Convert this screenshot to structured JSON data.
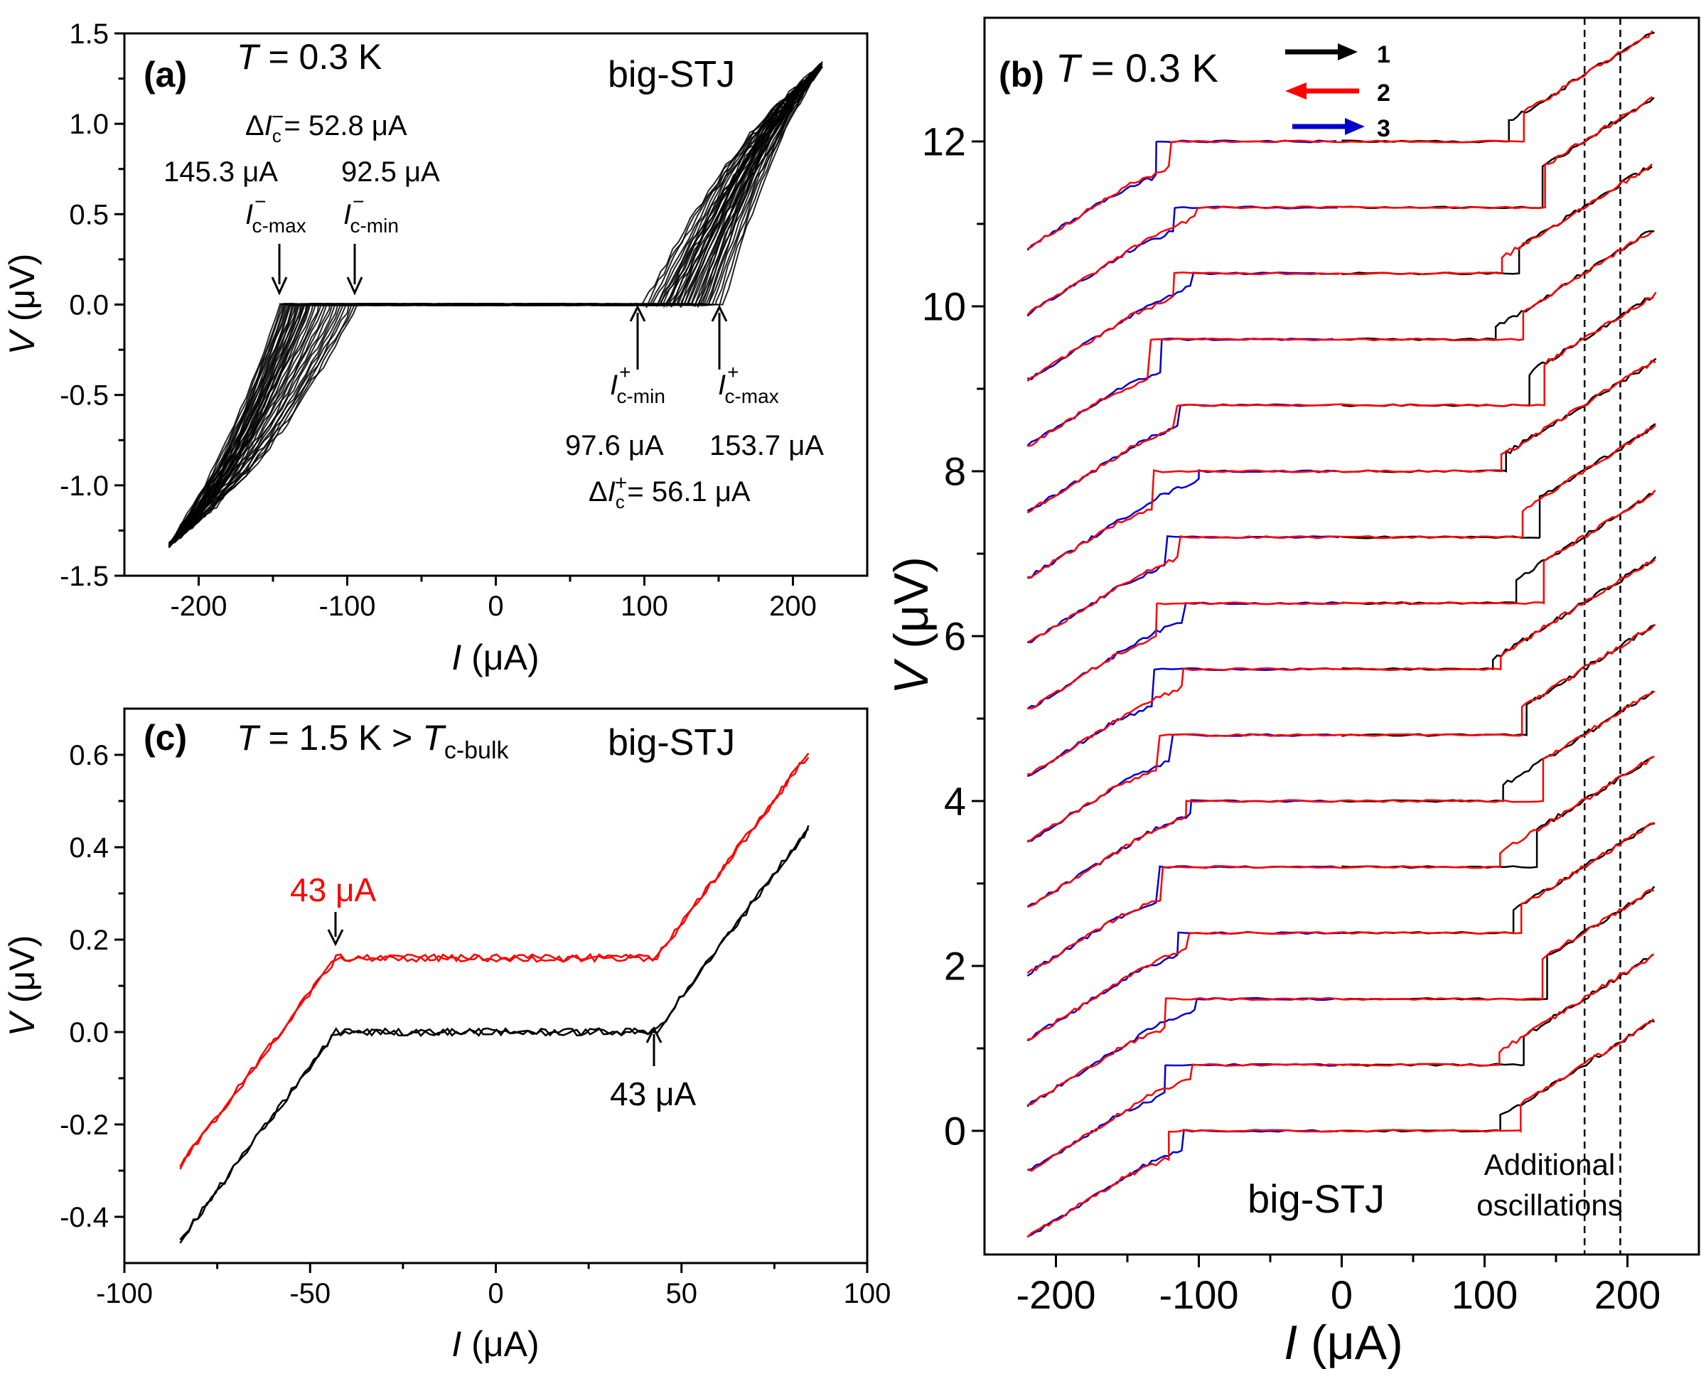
{
  "chart_data": [
    {
      "id": "a",
      "type": "line",
      "panel_label": "(a)",
      "title_T": "T",
      "title_rest": " = 0.3 K",
      "device": "big-STJ",
      "xlabel_sym": "I",
      "xlabel_unit": " (μA)",
      "ylabel_sym": "V",
      "ylabel_unit": " (μV)",
      "xlim": [
        -250,
        250
      ],
      "ylim": [
        -1.5,
        1.5
      ],
      "xticks": [
        -200,
        -100,
        0,
        100,
        200
      ],
      "xtick_labels": [
        "-200",
        "-100",
        "0",
        "100",
        "200"
      ],
      "yticks": [
        -1.5,
        -1.0,
        -0.5,
        0.0,
        0.5,
        1.0,
        1.5
      ],
      "ytick_labels": [
        "-1.5",
        "-1.0",
        "-0.5",
        "0.0",
        "0.5",
        "1.0",
        "1.5"
      ],
      "series_color": "#000000",
      "sweep_count": 40,
      "Ic_minus_max": -145.3,
      "Ic_minus_min": -92.5,
      "Ic_plus_min": 97.6,
      "Ic_plus_max": 153.7,
      "endpoints": [
        [
          -220,
          -1.33
        ],
        [
          220,
          1.33
        ]
      ],
      "annotations": {
        "delta_minus": "ΔIc−= 52.8 μA",
        "val_145": "145.3 μA",
        "val_925": "92.5 μA",
        "lbl_cmax_minus": "Ic-max−",
        "lbl_cmin_minus": "Ic-min−",
        "lbl_cmin_plus": "Ic-min+",
        "lbl_cmax_plus": "Ic-max+",
        "val_976": "97.6 μA",
        "val_1537": "153.7 μA",
        "delta_plus": "ΔIc+= 56.1 μA"
      }
    },
    {
      "id": "b",
      "type": "line",
      "panel_label": "(b)",
      "title_T": "T",
      "title_rest": " = 0.3 K",
      "device": "big-STJ",
      "xlabel_sym": "I",
      "xlabel_unit": " (μA)",
      "ylabel_sym": "V",
      "ylabel_unit": " (μV)",
      "xlim": [
        -250,
        250
      ],
      "ylim": [
        -1.5,
        13.5
      ],
      "xticks": [
        -200,
        -100,
        0,
        100,
        200
      ],
      "xtick_labels": [
        "-200",
        "-100",
        "0",
        "100",
        "200"
      ],
      "yticks": [
        0,
        2,
        4,
        6,
        8,
        10,
        12
      ],
      "ytick_labels": [
        "0",
        "2",
        "4",
        "6",
        "8",
        "10",
        "12"
      ],
      "curve_offsets": [
        0,
        0.8,
        1.6,
        2.4,
        3.2,
        4.0,
        4.8,
        5.6,
        6.4,
        7.2,
        8.0,
        8.8,
        9.6,
        10.4,
        11.2,
        12.0
      ],
      "slope_uV_per_uA": 0.0108,
      "legend": [
        {
          "label": "1",
          "color": "#000000",
          "direction": "right"
        },
        {
          "label": "2",
          "color": "#ff0000",
          "direction": "left"
        },
        {
          "label": "3",
          "color": "#0000cc",
          "direction": "right"
        }
      ],
      "vlines": [
        170,
        195
      ],
      "annotation_line1": "Additional",
      "annotation_line2": "oscillations"
    },
    {
      "id": "c",
      "type": "line",
      "panel_label": "(c)",
      "title_T": "T",
      "title_rest": " = 1.5 K > ",
      "title_T2": "T",
      "title_sub": "c-bulk",
      "device": "big-STJ",
      "xlabel_sym": "I",
      "xlabel_unit": " (μA)",
      "ylabel_sym": "V",
      "ylabel_unit": " (μV)",
      "xlim": [
        -100,
        100
      ],
      "ylim": [
        -0.5,
        0.7
      ],
      "xticks": [
        -100,
        -50,
        0,
        50,
        100
      ],
      "xtick_labels": [
        "-100",
        "-50",
        "0",
        "50",
        "100"
      ],
      "yticks": [
        -0.4,
        -0.2,
        0.0,
        0.2,
        0.4,
        0.6
      ],
      "ytick_labels": [
        "-0.4",
        "-0.2",
        "0.0",
        "0.2",
        "0.4",
        "0.6"
      ],
      "series": [
        {
          "name": "offset",
          "color": "#ff0000",
          "offset": 0.16
        },
        {
          "name": "base",
          "color": "#000000",
          "offset": 0.0
        }
      ],
      "critical_current": 43,
      "endpoints": [
        [
          -85,
          -0.45
        ],
        [
          85,
          0.45
        ]
      ],
      "label_red": "43 μA",
      "label_black": "43 μA"
    }
  ]
}
